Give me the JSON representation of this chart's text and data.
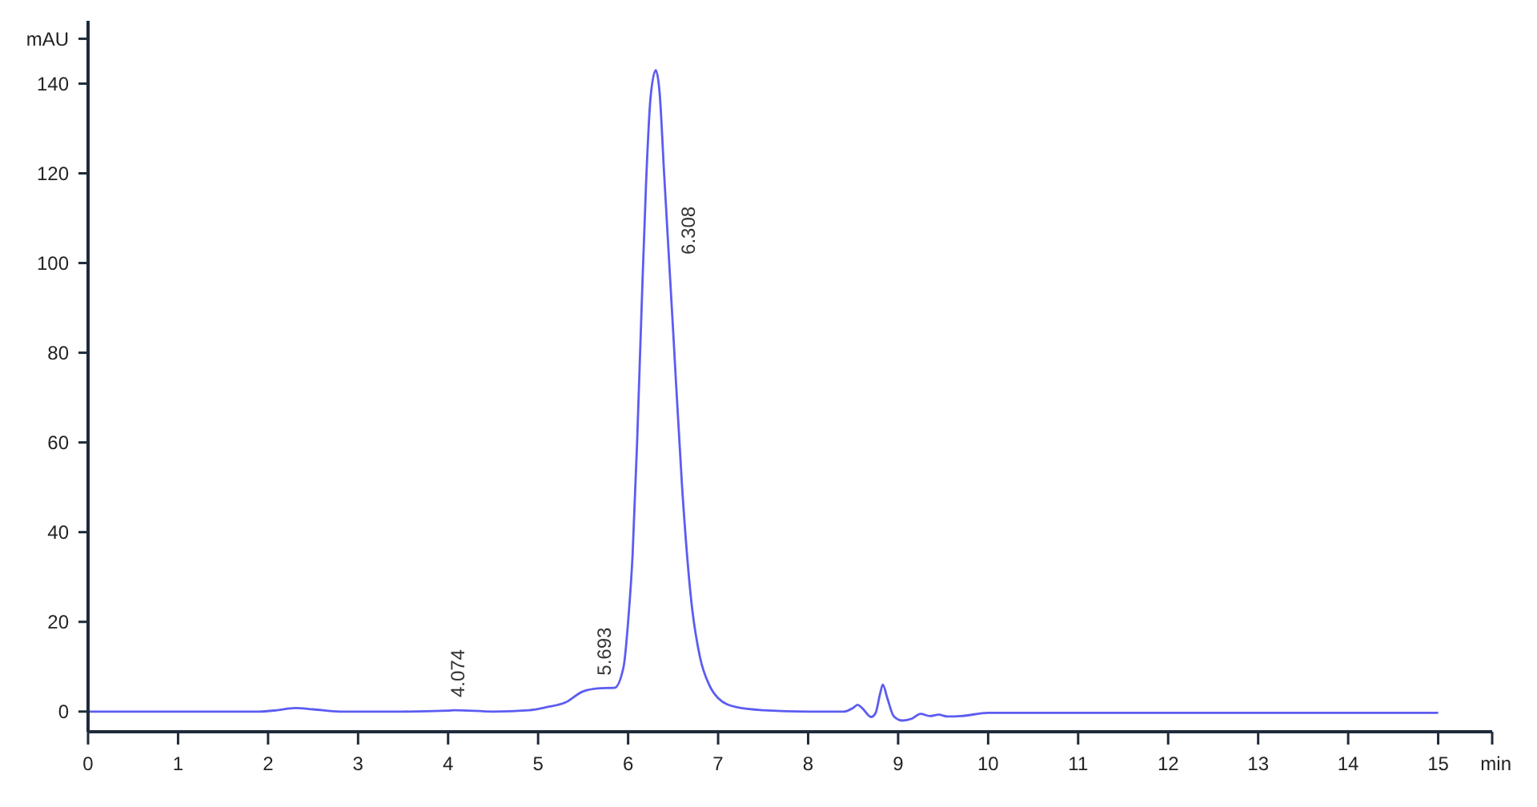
{
  "chart_data": {
    "type": "line",
    "xlabel": "min",
    "ylabel": "mAU",
    "xlim": [
      0,
      15.6
    ],
    "xticks": [
      0,
      1,
      2,
      3,
      4,
      5,
      6,
      7,
      8,
      9,
      10,
      11,
      12,
      13,
      14,
      15
    ],
    "ylim": [
      -4.5,
      154
    ],
    "yticks": [
      0,
      20,
      40,
      60,
      80,
      100,
      120,
      140,
      {
        "value": 150,
        "label": null
      }
    ],
    "grid": false,
    "marker": "none",
    "line_style": "solid",
    "series": [
      {
        "color": "#5c5cf2",
        "x": [
          0,
          1,
          1.9,
          2.1,
          2.3,
          2.5,
          2.8,
          3.5,
          4,
          4.074,
          4.5,
          4.9,
          5.1,
          5.3,
          5.5,
          5.693,
          5.85,
          5.95,
          6.0,
          6.05,
          6.1,
          6.15,
          6.2,
          6.25,
          6.308,
          6.35,
          6.4,
          6.5,
          6.6,
          6.7,
          6.8,
          6.9,
          7.0,
          7.2,
          7.5,
          8,
          8.4,
          8.5,
          8.55,
          8.6,
          8.7,
          8.75,
          8.8,
          8.83,
          8.88,
          8.95,
          9.05,
          9.15,
          9.25,
          9.35,
          9.45,
          9.55,
          9.7,
          10,
          15
        ],
        "values": [
          0,
          0,
          0,
          0.3,
          0.8,
          0.5,
          0,
          0,
          0.2,
          0.3,
          0,
          0.3,
          1,
          2,
          4.5,
          5.2,
          5.3,
          10,
          20,
          35,
          60,
          90,
          118,
          137,
          143,
          138,
          120,
          85,
          50,
          25,
          12,
          6,
          3,
          1,
          0.3,
          0,
          0,
          0.8,
          1.5,
          0.8,
          -1.2,
          -0.3,
          4,
          6,
          3,
          -1,
          -2,
          -1.6,
          -0.5,
          -1,
          -0.7,
          -1.1,
          -1,
          -0.3,
          -0.3
        ]
      }
    ],
    "annotations": [
      {
        "text": "4.074",
        "x": 4.074,
        "y": 0.3
      },
      {
        "text": "5.693",
        "x": 5.693,
        "y": 5.2
      },
      "6.308"
    ]
  }
}
